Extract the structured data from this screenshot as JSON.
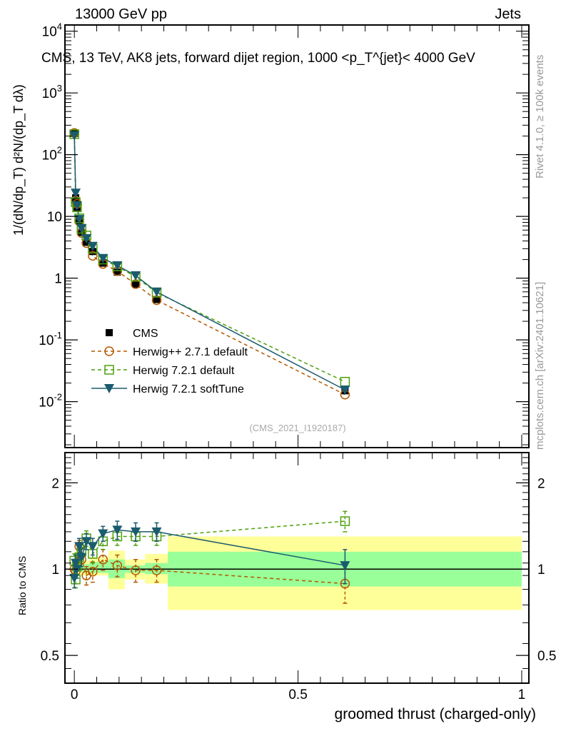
{
  "header": {
    "left": "13000 GeV pp",
    "right": "Jets"
  },
  "side_texts": {
    "rivet": "Rivet 4.1.0, ≥ 100k events",
    "mcplots": "mcplots.cern.ch [arXiv:2401.10621]"
  },
  "analysis_id": "(CMS_2021_I1920187)",
  "colors": {
    "cms": "#000000",
    "herwigpp": "#b35900",
    "herwig721": "#4da00d",
    "softtune": "#1b5b6e",
    "band_yellow": "#ffff99",
    "band_green": "#99ff99"
  },
  "chart_data": [
    {
      "type": "line",
      "panel": "main",
      "title": "CMS, 13 TeV, AK8 jets, forward dijet region, 1000 <p_T^{jet}< 4000 GeV",
      "ylabel": "1/(dN/dp_T) d²N/(dp_T dλ)",
      "yscale": "log",
      "ylim": [
        0.0018,
        12600
      ],
      "xlim": [
        -0.021,
        1.016
      ],
      "ytick_labels": [
        "10^4",
        "10^3",
        "10^2",
        "10",
        "1",
        "10^-1",
        "10^-2"
      ],
      "yticks": [
        10000,
        1000,
        100,
        10,
        1,
        0.1,
        0.01
      ],
      "legend_position": "center-left",
      "x": [
        0.0,
        0.003,
        0.006,
        0.011,
        0.016,
        0.027,
        0.041,
        0.064,
        0.096,
        0.137,
        0.184,
        0.605
      ],
      "series": [
        {
          "name": "CMS",
          "marker": "square",
          "values": [
            220,
            20,
            14,
            8.5,
            5.5,
            3.8,
            2.7,
            1.75,
            1.25,
            0.8,
            0.45,
            0.015
          ]
        },
        {
          "name": "Herwig++ 2.7.1 default",
          "marker": "circle",
          "style": "dashed",
          "values": [
            225,
            18,
            16,
            8.3,
            5.4,
            3.7,
            2.3,
            1.7,
            1.3,
            0.8,
            0.44,
            0.013
          ]
        },
        {
          "name": "Herwig 7.2.1 default",
          "marker": "open-square",
          "style": "dashed",
          "values": [
            215,
            17,
            14,
            9.3,
            6.3,
            4.9,
            3.0,
            2.0,
            1.55,
            1.05,
            0.58,
            0.021
          ]
        },
        {
          "name": "Herwig 7.2.1 softTune",
          "marker": "triangle-down",
          "style": "solid",
          "values": [
            205,
            24,
            15,
            9.0,
            6.4,
            4.4,
            3.3,
            2.1,
            1.6,
            1.1,
            0.6,
            0.0155
          ]
        }
      ]
    },
    {
      "type": "line",
      "panel": "ratio",
      "ylabel": "Ratio to CMS",
      "xlabel": "groomed thrust (charged-only)",
      "yscale": "log",
      "ylim": [
        0.4,
        2.55
      ],
      "xlim": [
        -0.021,
        1.016
      ],
      "xticks": [
        0,
        0.5,
        1
      ],
      "xtick_labels": [
        "0",
        "0.5",
        "1"
      ],
      "yticks": [
        0.5,
        1,
        2
      ],
      "ytick_labels": [
        "0.5",
        "1",
        "2"
      ],
      "x": [
        0.0,
        0.003,
        0.006,
        0.011,
        0.016,
        0.027,
        0.041,
        0.064,
        0.096,
        0.137,
        0.184,
        0.605
      ],
      "bands": {
        "edges": [
          -0.002,
          0.034,
          0.076,
          0.113,
          0.158,
          0.209,
          1.0
        ],
        "yellow_lo": [
          0.95,
          0.95,
          0.85,
          0.92,
          0.89,
          0.72
        ],
        "yellow_hi": [
          1.07,
          1.1,
          1.16,
          1.08,
          1.13,
          1.3
        ],
        "green_lo": [
          0.98,
          0.97,
          0.93,
          0.97,
          0.96,
          0.87
        ],
        "green_hi": [
          1.04,
          1.06,
          1.08,
          1.03,
          1.05,
          1.15
        ]
      },
      "series": [
        {
          "name": "Herwig++ 2.7.1 default",
          "values": [
            1.0,
            0.98,
            1.05,
            1.2,
            1.08,
            0.95,
            0.98,
            1.08,
            1.03,
            0.99,
            0.99,
            0.89
          ],
          "err": [
            0.05,
            0.05,
            0.05,
            0.06,
            0.06,
            0.07,
            0.08,
            0.09,
            0.09,
            0.09,
            0.09,
            0.13
          ]
        },
        {
          "name": "Herwig 7.2.1 default",
          "values": [
            1.07,
            0.92,
            1.02,
            1.1,
            1.15,
            1.28,
            1.13,
            1.25,
            1.3,
            1.3,
            1.3,
            1.47
          ],
          "err": [
            0.06,
            0.06,
            0.06,
            0.07,
            0.07,
            0.08,
            0.08,
            0.08,
            0.09,
            0.09,
            0.09,
            0.12
          ]
        },
        {
          "name": "Herwig 7.2.1 softTune",
          "values": [
            0.93,
            1.05,
            1.0,
            1.2,
            1.1,
            1.25,
            1.2,
            1.33,
            1.37,
            1.35,
            1.35,
            1.03
          ],
          "err": [
            0.07,
            0.07,
            0.07,
            0.08,
            0.08,
            0.08,
            0.08,
            0.08,
            0.1,
            0.1,
            0.1,
            0.14
          ]
        }
      ]
    }
  ]
}
